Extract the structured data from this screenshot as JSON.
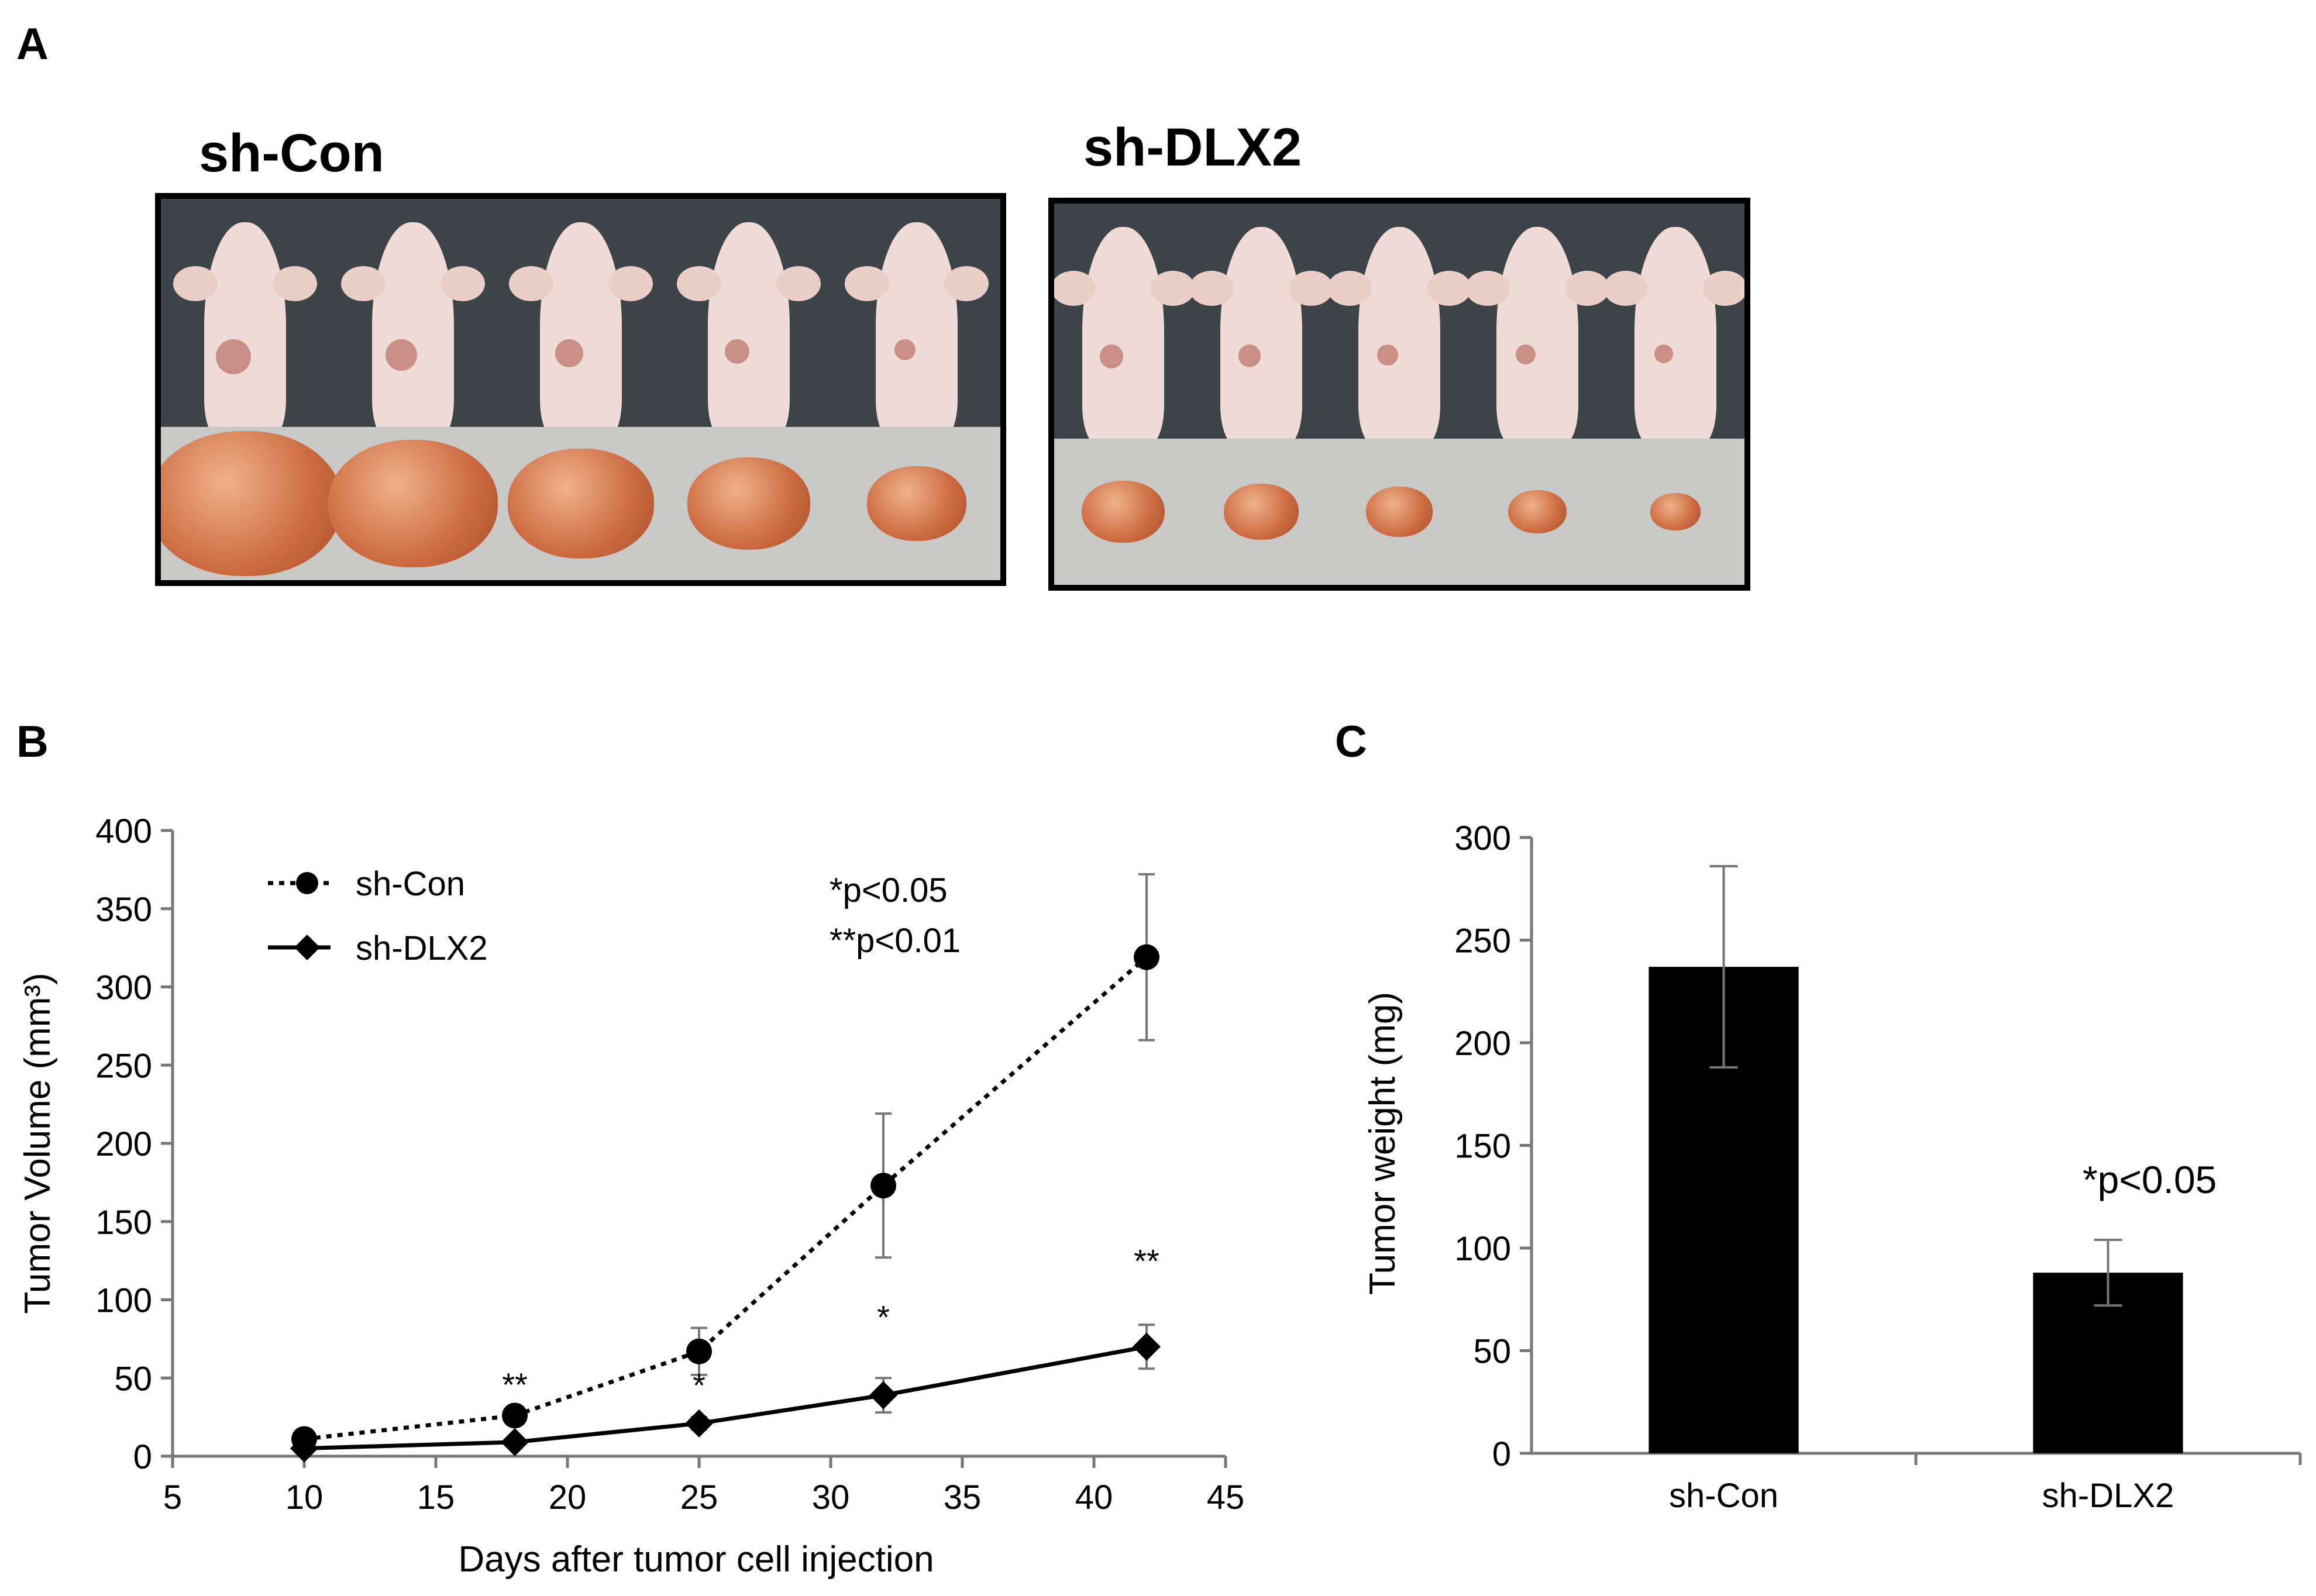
{
  "panels": {
    "a": "A",
    "b": "B",
    "c": "C"
  },
  "photo_groups": [
    {
      "label": "sh-Con",
      "mouse_count": 5,
      "tumor_count": 5
    },
    {
      "label": "sh-DLX2",
      "mouse_count": 5,
      "tumor_count": 5
    }
  ],
  "colors": {
    "photo_background": "#3d4347",
    "mouse_skin": "#efdcd6",
    "tumor": "#cc6a40",
    "bars": "#000000",
    "error_bars": "#777777"
  },
  "chart_data": [
    {
      "type": "line",
      "xlabel": "Days after tumor cell injection",
      "ylabel": "Tumor Volume (mm³)",
      "xlim": [
        5,
        45
      ],
      "ylim": [
        0,
        400
      ],
      "xticks": [
        5,
        10,
        15,
        20,
        25,
        30,
        35,
        40,
        45
      ],
      "yticks": [
        0,
        50,
        100,
        150,
        200,
        250,
        300,
        350,
        400
      ],
      "grid": false,
      "legend_position": "top-left",
      "x": [
        10,
        18,
        25,
        32,
        42
      ],
      "series": [
        {
          "name": "sh-Con",
          "style": "dotted",
          "marker": "circle",
          "values": [
            11,
            26,
            67,
            173,
            319
          ],
          "errors": [
            4,
            5,
            15,
            46,
            53
          ]
        },
        {
          "name": "sh-DLX2",
          "style": "solid",
          "marker": "diamond",
          "values": [
            5,
            9,
            21,
            39,
            70
          ],
          "errors": [
            2,
            3,
            4,
            11,
            14
          ]
        }
      ],
      "significance_marks": [
        {
          "x": 18,
          "label": "**"
        },
        {
          "x": 25,
          "label": "*"
        },
        {
          "x": 32,
          "label": "*"
        },
        {
          "x": 42,
          "label": "**"
        }
      ],
      "annotations": [
        "*p<0.05",
        "**p<0.01"
      ]
    },
    {
      "type": "bar",
      "categories": [
        "sh-Con",
        "sh-DLX2"
      ],
      "values": [
        237,
        88
      ],
      "errors": [
        49,
        16
      ],
      "ylabel": "Tumor weight (mg)",
      "ylim": [
        0,
        300
      ],
      "yticks": [
        0,
        50,
        100,
        150,
        200,
        250,
        300
      ],
      "grid": false,
      "annotation": "*p<0.05"
    }
  ]
}
